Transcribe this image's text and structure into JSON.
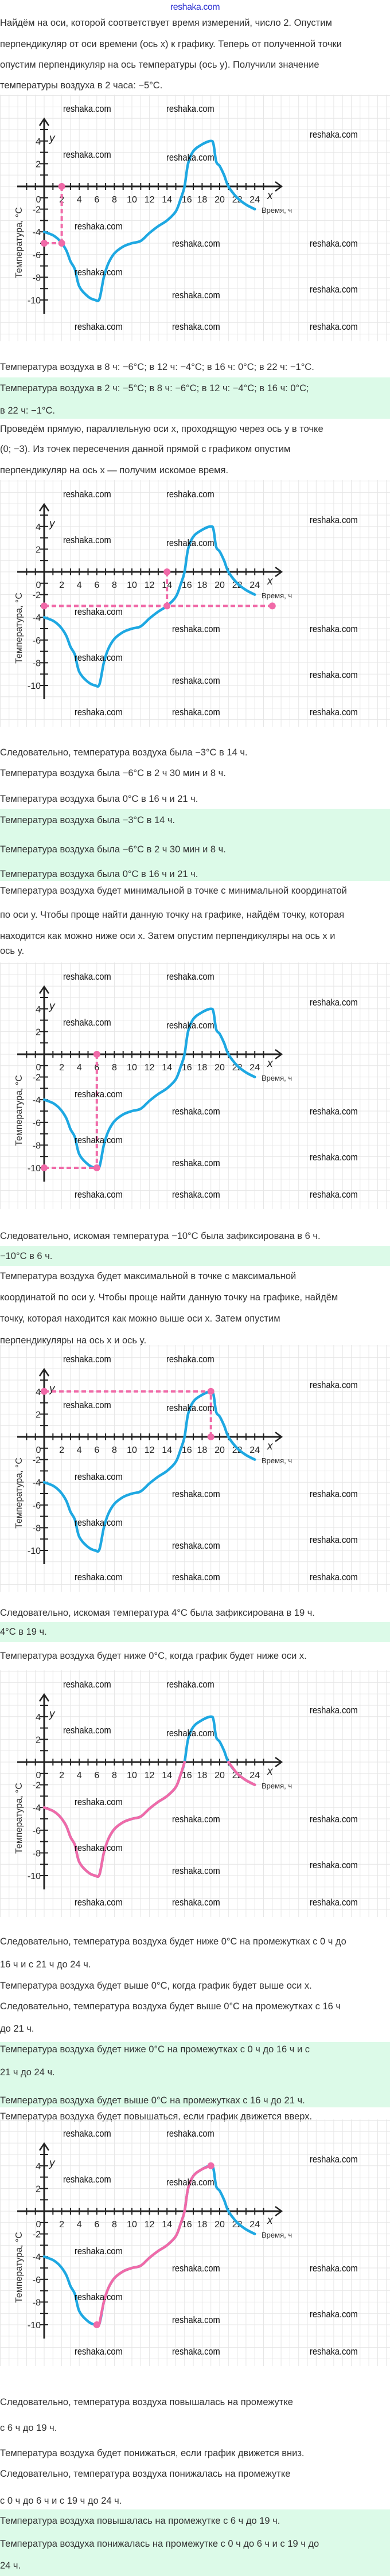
{
  "header": {
    "logo": "reshaka.com"
  },
  "watermark": "reshaka.com",
  "blocks": [
    {
      "type": "text",
      "lines": [
        "Найдём на оси, которой соответствует время измерений, число 2. Опустим",
        "перпендикуляр от оси времени (ось x) к графику. Теперь от полученной точки",
        "опустим перпендикуляр на ось температуры (ось y). Получили значение",
        "температуры воздуха в 2 часа: −5°C."
      ]
    },
    {
      "type": "text",
      "lines": [
        "Температура воздуха в 8 ч: −6°C; в 12 ч: −4°C; в 16 ч: 0°C; в 22 ч: −1°C."
      ]
    },
    {
      "type": "answer",
      "lines": [
        "Температура воздуха в 2 ч: −5°C; в 8 ч: −6°C; в 12 ч: −4°C; в 16 ч: 0°C;",
        "в 22 ч: −1°C."
      ]
    },
    {
      "type": "text",
      "lines": [
        "Проведём прямую, параллельную оси x, проходящую через ось y в точке",
        "(0; −3). Из точек пересечения данной прямой с графиком опустим",
        "перпендикуляр на ось x — получим искомое время."
      ]
    },
    {
      "type": "text",
      "lines": [
        "Следовательно, температура воздуха была −3°C в 14 ч.",
        "Температура воздуха была −6°C в 2 ч 30 мин и 8 ч.",
        "Температура воздуха была 0°C в 16 ч и 21 ч."
      ]
    },
    {
      "type": "answer",
      "lines": [
        "Температура воздуха была −3°C в 14 ч.",
        "Температура воздуха была −6°C в 2 ч 30 мин и 8 ч.",
        "Температура воздуха была 0°C в 16 ч и 21 ч."
      ]
    },
    {
      "type": "text",
      "lines": [
        "Температура воздуха будет минимальной в точке с минимальной координатой",
        "по оси y. Чтобы проще найти данную точку на графике, найдём точку, которая",
        "находится как можно ниже оси x. Затем опустим перпендикуляры на ось x и",
        "ось y."
      ]
    },
    {
      "type": "text",
      "lines": [
        "Следовательно, искомая температура −10°C была зафиксирована в 6 ч."
      ]
    },
    {
      "type": "answer",
      "lines": [
        "−10°C в 6 ч."
      ]
    },
    {
      "type": "text",
      "lines": [
        "Температура воздуха будет максимальной в точке с максимальной",
        "координатой по оси y. Чтобы проще найти данную точку на графике, найдём",
        "точку, которая находится как можно выше оси x. Затем опустим",
        "перпендикуляры на ось x и ось y."
      ]
    },
    {
      "type": "text",
      "lines": [
        "Следовательно, искомая температура 4°C была зафиксирована в 19 ч."
      ]
    },
    {
      "type": "answer",
      "lines": [
        "4°C в 19 ч."
      ]
    },
    {
      "type": "text",
      "lines": [
        "Температура воздуха будет ниже 0°C, когда график будет ниже оси x."
      ]
    },
    {
      "type": "text",
      "lines": [
        "Следовательно, температура воздуха будет ниже 0°C на промежутках с 0 ч до",
        "16 ч и с 21 ч до 24 ч.",
        "Температура воздуха будет выше 0°C, когда график будет выше оси x.",
        "Следовательно, температура воздуха будет выше 0°C на промежутках с 16 ч",
        "до 21 ч."
      ]
    },
    {
      "type": "answer",
      "lines": [
        "Температура воздуха будет ниже 0°C на промежутках с 0 ч до 16 ч и с",
        "21 ч до 24 ч.",
        "Температура воздуха будет выше 0°C на промежутках с 16 ч до 21 ч."
      ]
    },
    {
      "type": "text",
      "lines": [
        "Температура воздуха будет повышаться, если график движется вверх."
      ]
    },
    {
      "type": "text",
      "lines": [
        "Следовательно, температура воздуха повышалась на промежутке",
        "с 6 ч до 19 ч.",
        "Температура воздуха будет понижаться, если график движется вниз.",
        "Следовательно, температура воздуха понижалась на промежутке",
        "с 0 ч до 6 ч и с 19 ч до 24 ч."
      ]
    },
    {
      "type": "answer",
      "lines": [
        "Температура воздуха повышалась на промежутке с 6 ч до 19 ч.",
        "Температура воздуха понижалась на промежутке с 0 ч до 6 ч и с 19 ч до",
        "24 ч."
      ]
    }
  ],
  "chart_axes": {
    "x_label": "x",
    "y_label": "y",
    "x_title": "Время, ч",
    "y_title": "Температура, °С",
    "x_ticks": [
      "0",
      "2",
      "4",
      "6",
      "8",
      "10",
      "12",
      "14",
      "16",
      "18",
      "20",
      "22",
      "24"
    ],
    "y_ticks": [
      "4",
      "2",
      "-2",
      "-4",
      "-6",
      "-8",
      "-10"
    ]
  },
  "chart_data": {
    "type": "line",
    "title": "",
    "xlabel": "Время, ч",
    "ylabel": "Температура, °С",
    "xlim": [
      0,
      24
    ],
    "ylim": [
      -10,
      4
    ],
    "grid": true,
    "x": [
      0,
      1,
      1.8,
      2.5,
      3,
      3.5,
      4,
      5,
      5.8,
      6.3,
      6.8,
      7.3,
      8,
      9,
      10,
      11,
      12,
      13,
      14,
      15,
      15.6,
      16,
      16.4,
      17,
      18,
      19,
      19.3,
      19.6,
      20,
      20.5,
      21,
      22,
      23,
      24
    ],
    "y": [
      -4,
      -4.3,
      -4.8,
      -5.6,
      -6.6,
      -7.3,
      -8.8,
      -9.7,
      -10,
      -9.9,
      -8,
      -6.8,
      -5.9,
      -5.3,
      -5,
      -4.8,
      -4.1,
      -3.5,
      -3,
      -2.2,
      -1,
      0,
      2,
      3.1,
      3.7,
      4,
      3.7,
      2.2,
      1.8,
      1,
      0,
      -1,
      -1.6,
      -2
    ]
  },
  "charts": [
    {
      "points": [
        [
          2,
          -5
        ]
      ],
      "guides": true
    },
    {
      "points": [
        [
          14,
          -3
        ]
      ],
      "guides": true,
      "level_line": {
        "y": -3,
        "to_x": 26
      }
    },
    {
      "points": [
        [
          6,
          -10
        ]
      ],
      "guides": true
    },
    {
      "points": [
        [
          19,
          4
        ]
      ],
      "guides": true
    },
    {
      "highlight": [
        [
          0,
          16
        ],
        [
          21,
          24
        ]
      ],
      "points": [],
      "guides": false
    },
    {
      "highlight": [
        [
          6,
          19
        ]
      ],
      "points": [
        [
          6,
          -10
        ],
        [
          19,
          4
        ]
      ],
      "guides": false
    }
  ],
  "colors": {
    "curve": "#1ea8e2",
    "highlight": "#f06aa8",
    "answer_bg": "#dcfae8",
    "logo": "#2a2fd0"
  }
}
